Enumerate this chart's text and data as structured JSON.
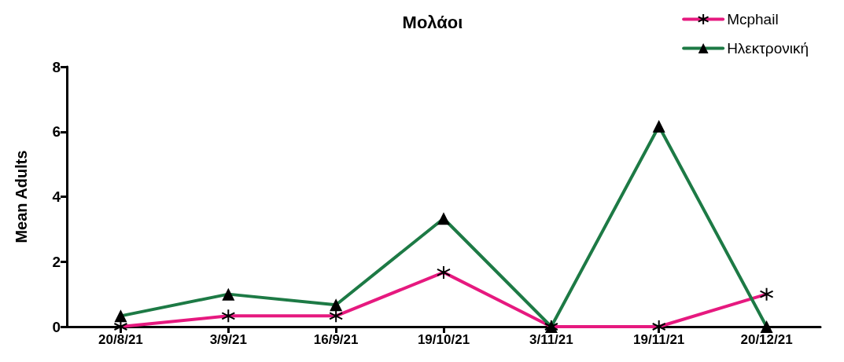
{
  "chart_data": {
    "type": "line",
    "title": "Μολάοι",
    "ylabel": "Mean Adults",
    "categories": [
      "20/8/21",
      "3/9/21",
      "16/9/21",
      "19/10/21",
      "3/11/21",
      "19/11/21",
      "20/12/21"
    ],
    "series": [
      {
        "name": "Mcphail",
        "color": "#e6197f",
        "marker": "star",
        "values": [
          0,
          0.33,
          0.33,
          1.67,
          0,
          0,
          1
        ]
      },
      {
        "name": "Ηλεκτρονική",
        "color": "#1d7a45",
        "marker": "triangle",
        "values": [
          0.33,
          1,
          0.67,
          3.33,
          0,
          6.17,
          0
        ]
      }
    ],
    "ylim": [
      0,
      8
    ],
    "yticks": [
      0,
      2,
      4,
      6,
      8
    ],
    "grid": false,
    "legend": "top right",
    "line_style": "solid"
  }
}
